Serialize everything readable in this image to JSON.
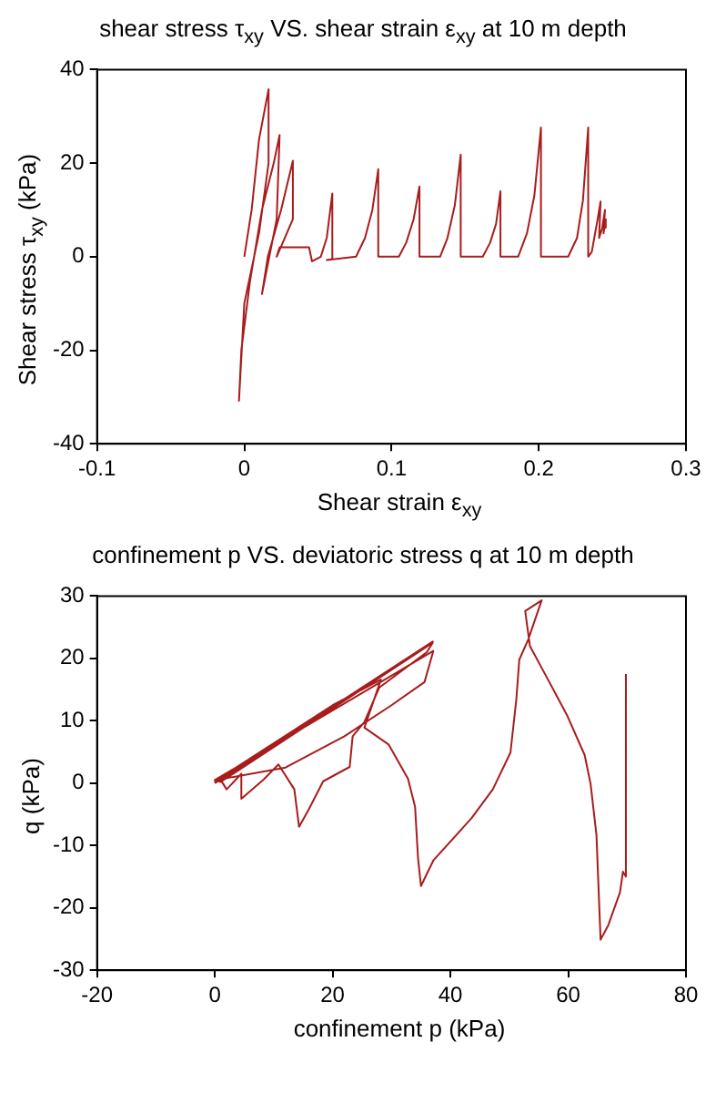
{
  "chart_data": [
    {
      "type": "line",
      "title": "shear stress τ$_{xy}$ VS. shear strain ε$_{xy}$ at 10 m depth",
      "xlabel": "Shear strain ε$_{xy}$",
      "ylabel": "Shear stress τ$_{xy}$ (kPa)",
      "xlim": [
        -0.1,
        0.3
      ],
      "xticks": [
        -0.1,
        0,
        0.1,
        0.2,
        0.3
      ],
      "ylim": [
        -40,
        40
      ],
      "yticks": [
        -40,
        -20,
        0,
        20,
        40
      ],
      "grid": false,
      "legend": false,
      "marker": "none",
      "line_style": "solid",
      "series": [
        {
          "color": "#a81c1c",
          "x": [
            0,
            0.005,
            0.01,
            0.0165,
            0.0165,
            0.01,
            0,
            -0.0036,
            -0.002,
            0.004,
            0.012,
            0.02,
            0.024,
            0.022,
            0.012,
            0.016,
            0.025,
            0.033,
            0.033,
            0.022,
            0.024,
            0.044,
            0.046,
            0.052,
            0.056,
            0.0598,
            0.0598,
            0.056,
            0.0759,
            0.082,
            0.087,
            0.091,
            0.091,
            0.105,
            0.11,
            0.115,
            0.119,
            0.119,
            0.133,
            0.138,
            0.143,
            0.147,
            0.147,
            0.162,
            0.167,
            0.171,
            0.174,
            0.174,
            0.186,
            0.192,
            0.197,
            0.2015,
            0.2015,
            0.22,
            0.226,
            0.23,
            0.2336,
            0.2336,
            0.236,
            0.24,
            0.242,
            0.241,
            0.243,
            0.245,
            0.244,
            0.2455,
            0.2455
          ],
          "values": [
            0,
            10,
            25,
            35.8,
            20,
            5,
            -10,
            -30.8,
            -20,
            -5,
            10,
            20,
            26,
            8,
            -8,
            0,
            10,
            20.5,
            8,
            0,
            2,
            2,
            -1,
            0,
            4,
            13.5,
            -0.5,
            -0.7,
            0,
            4,
            10,
            18.7,
            0,
            0,
            3,
            8,
            15,
            0,
            0,
            4,
            11,
            21.8,
            0,
            0,
            3,
            7,
            14,
            0,
            0,
            5,
            13,
            27.6,
            0,
            0,
            4,
            12,
            27.6,
            0,
            1,
            8,
            11.8,
            4,
            6,
            10,
            5,
            8,
            6.2
          ]
        }
      ]
    },
    {
      "type": "line",
      "title": "confinement p VS. deviatoric stress q at 10 m depth",
      "xlabel": "confinement p (kPa)",
      "ylabel": "q (kPa)",
      "xlim": [
        -20,
        80
      ],
      "xticks": [
        -20,
        0,
        20,
        40,
        60,
        80
      ],
      "ylim": [
        -30,
        30
      ],
      "yticks": [
        -30,
        -20,
        -10,
        0,
        10,
        20,
        30
      ],
      "grid": false,
      "legend": false,
      "marker": "none",
      "line_style": "solid",
      "series": [
        {
          "color": "#a81c1c",
          "x": [
            0,
            37,
            1,
            2,
            4.5,
            4.5,
            8.3,
            10.8,
            13.5,
            14.3,
            15.9,
            18.4,
            22.9,
            23.4,
            25.4,
            27.9,
            36,
            37,
            1,
            0,
            37.1,
            35.6,
            30,
            22,
            12,
            2,
            0,
            20,
            28.2,
            25.4,
            29.5,
            32.8,
            34,
            34.5,
            35,
            37.1,
            43.6,
            47.2,
            50.2,
            51.2,
            51.7,
            53.2,
            55.5,
            52.7,
            53.5,
            56.8,
            59.8,
            62.8,
            63.8,
            64.8,
            65.5,
            66.8,
            68.8,
            69.3,
            69.8,
            69.8
          ],
          "values": [
            0,
            22.7,
            0.5,
            -1,
            1.5,
            -2.5,
            0.6,
            3,
            -1,
            -7,
            -4.3,
            0.3,
            2.6,
            7.5,
            9.8,
            15.3,
            21,
            22.5,
            0.2,
            0.5,
            21.2,
            16.2,
            12.5,
            7.5,
            2.5,
            0.8,
            0.3,
            12.5,
            16.6,
            8.9,
            6.2,
            0.7,
            -3.8,
            -12,
            -16.5,
            -12.4,
            -5.6,
            -1,
            4.9,
            13.5,
            19.8,
            23,
            29.3,
            27.6,
            22,
            16.2,
            10.9,
            4.5,
            -0.1,
            -8.3,
            -25.1,
            -22.8,
            -17.5,
            -14.2,
            -15,
            17.5
          ]
        }
      ]
    }
  ]
}
